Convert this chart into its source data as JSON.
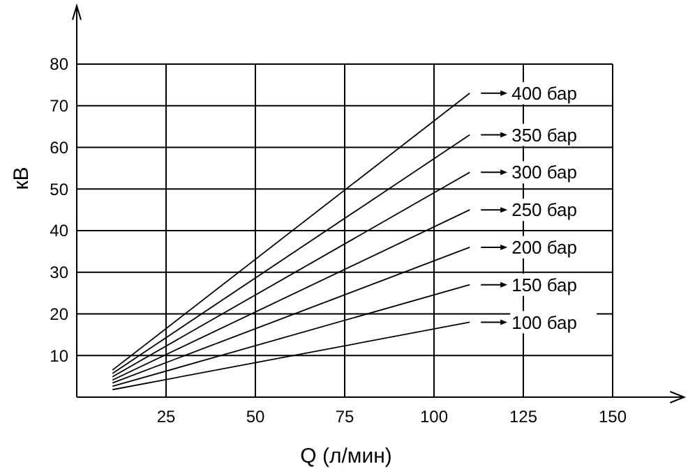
{
  "chart_data": {
    "type": "line",
    "xlabel": "Q (л/мин)",
    "ylabel": "кВ",
    "xlim": [
      0,
      170
    ],
    "ylim": [
      0,
      94
    ],
    "xticks": [
      25,
      50,
      75,
      100,
      125,
      150
    ],
    "yticks": [
      10,
      20,
      30,
      40,
      50,
      60,
      70,
      80
    ],
    "grid": true,
    "legend": "right",
    "marker": "none",
    "line_style": "solid",
    "x": [
      10,
      110
    ],
    "series": [
      {
        "name": "400 бар",
        "color": "#000000",
        "values": [
          6.5,
          73
        ]
      },
      {
        "name": "350 бар",
        "color": "#000000",
        "values": [
          5.7,
          63
        ]
      },
      {
        "name": "300 бар",
        "color": "#000000",
        "values": [
          4.9,
          54
        ]
      },
      {
        "name": "250 бар",
        "color": "#000000",
        "values": [
          4.1,
          45
        ]
      },
      {
        "name": "200 бар",
        "color": "#000000",
        "values": [
          3.4,
          36
        ]
      },
      {
        "name": "150 бар",
        "color": "#000000",
        "values": [
          2.6,
          27
        ]
      },
      {
        "name": "100 бар",
        "color": "#000000",
        "values": [
          1.8,
          18
        ]
      }
    ]
  }
}
